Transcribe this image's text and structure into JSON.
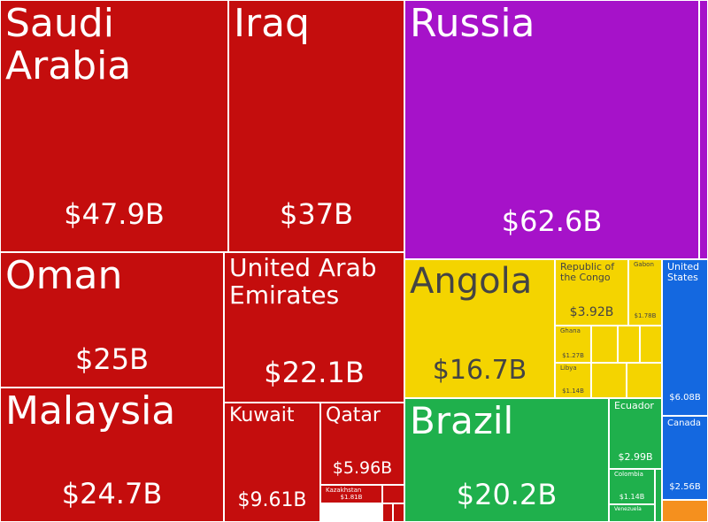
{
  "chart_data": {
    "type": "treemap",
    "categories": [
      "Saudi Arabia",
      "Iraq",
      "Russia",
      "Oman",
      "United Arab Emirates",
      "Malaysia",
      "Kuwait",
      "Qatar",
      "Kazakhstan",
      "Angola",
      "Republic of the Congo",
      "Gabon",
      "Ghana",
      "Libya",
      "United States",
      "Canada",
      "Brazil",
      "Ecuador",
      "Colombia",
      "Venezuela"
    ],
    "values": [
      47.9,
      37,
      62.6,
      25,
      22.1,
      24.7,
      9.61,
      5.96,
      1.81,
      16.7,
      3.92,
      1.78,
      1.27,
      1.14,
      6.08,
      2.56,
      20.2,
      2.99,
      1.14,
      0.9
    ],
    "value_labels": [
      "$47.9B",
      "$37B",
      "$62.6B",
      "$25B",
      "$22.1B",
      "$24.7B",
      "$9.61B",
      "$5.96B",
      "$1.81B",
      "$16.7B",
      "$3.92B",
      "$1.78B",
      "$1.27B",
      "$1.14B",
      "$6.08B",
      "$2.56B",
      "$20.2B",
      "$2.99B",
      "$1.14B",
      null
    ],
    "colors": [
      "#c40d0d",
      "#c40d0d",
      "#a612c9",
      "#c40d0d",
      "#c40d0d",
      "#c40d0d",
      "#c40d0d",
      "#c40d0d",
      "#c40d0d",
      "#f4d400",
      "#f4d400",
      "#f4d400",
      "#f4d400",
      "#f4d400",
      "#1468e0",
      "#1468e0",
      "#1fb04c",
      "#1fb04c",
      "#1fb04c",
      "#1fb04c"
    ]
  }
}
